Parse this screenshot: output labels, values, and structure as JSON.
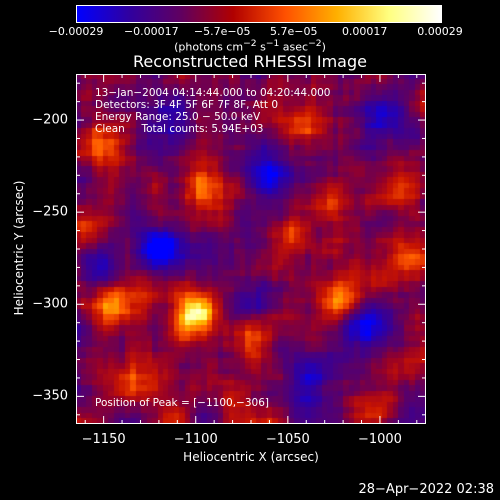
{
  "colors": {
    "foreground": "#ffffff",
    "background": "#000000"
  },
  "chart_data": {
    "type": "heatmap",
    "title": "Reconstructed RHESSI Image",
    "xlabel": "Heliocentric X (arcsec)",
    "ylabel": "Heliocentric Y (arcsec)",
    "xlim": [
      -1165,
      -975
    ],
    "ylim": [
      -365,
      -175
    ],
    "xticks": [
      -1150,
      -1100,
      -1050,
      -1000
    ],
    "xtick_labels": [
      "−1150",
      "−1100",
      "−1050",
      "−1000"
    ],
    "yticks": [
      -200,
      -250,
      -300,
      -350
    ],
    "ytick_labels": [
      "−200",
      "−250",
      "−300",
      "−350"
    ],
    "colorbar": {
      "range": [
        -0.00029,
        0.00029
      ],
      "ticks": [
        -0.00029,
        -0.00017,
        -5.7e-05,
        5.7e-05,
        0.00017,
        0.00029
      ],
      "tick_labels": [
        "−0.00029",
        "−0.00017",
        "−5.7e−05",
        "5.7e−05",
        "0.00017",
        "0.00029"
      ],
      "unit_prefix": "(photons cm",
      "unit_exp1": "−2",
      "unit_mid1": " s",
      "unit_exp2": "−1",
      "unit_mid2": " asec",
      "unit_exp3": "−2",
      "unit_suffix": ")"
    },
    "annotations": [
      "13−Jan−2004 04:14:44.000 to 04:20:44.000",
      "Detectors: 3F 4F 5F 6F 7F 8F, Att 0",
      "Energy Range: 25.0 − 50.0 keV",
      "Clean     Total counts: 5.94E+03"
    ],
    "peak_label": "Position of Peak = [−1100,−306]",
    "peak": {
      "x": -1100,
      "y": -306
    },
    "bright_sources": [
      {
        "x": -1100,
        "y": -306,
        "value": 0.00029
      },
      {
        "x": -1022,
        "y": -298,
        "value": 0.00027
      },
      {
        "x": -1095,
        "y": -237,
        "value": 0.00023
      },
      {
        "x": -1145,
        "y": -300,
        "value": 0.00021
      },
      {
        "x": -1066,
        "y": -315,
        "value": 0.00019
      },
      {
        "x": -1132,
        "y": -340,
        "value": 0.00018
      },
      {
        "x": -1150,
        "y": -212,
        "value": 0.00016
      },
      {
        "x": -1040,
        "y": -202,
        "value": 0.00016
      },
      {
        "x": -982,
        "y": -278,
        "value": 0.00017
      },
      {
        "x": -985,
        "y": -238,
        "value": 0.00015
      },
      {
        "x": -1045,
        "y": -265,
        "value": 0.00014
      },
      {
        "x": -1080,
        "y": -352,
        "value": 0.00013
      },
      {
        "x": -1160,
        "y": -255,
        "value": 0.00012
      },
      {
        "x": -1005,
        "y": -355,
        "value": 0.00011
      },
      {
        "x": -1028,
        "y": -245,
        "value": 0.00012
      }
    ],
    "dark_sources": [
      {
        "x": -1120,
        "y": -270,
        "value": -0.00029
      },
      {
        "x": -1060,
        "y": -230,
        "value": -0.00025
      },
      {
        "x": -1010,
        "y": -310,
        "value": -0.00022
      },
      {
        "x": -1150,
        "y": -280,
        "value": -0.0002
      },
      {
        "x": -1000,
        "y": -200,
        "value": -0.00018
      },
      {
        "x": -1070,
        "y": -300,
        "value": -0.00019
      },
      {
        "x": -1110,
        "y": -200,
        "value": -0.00017
      },
      {
        "x": -1040,
        "y": -340,
        "value": -0.00016
      }
    ]
  },
  "timestamp": "28−Apr−2022 02:38"
}
